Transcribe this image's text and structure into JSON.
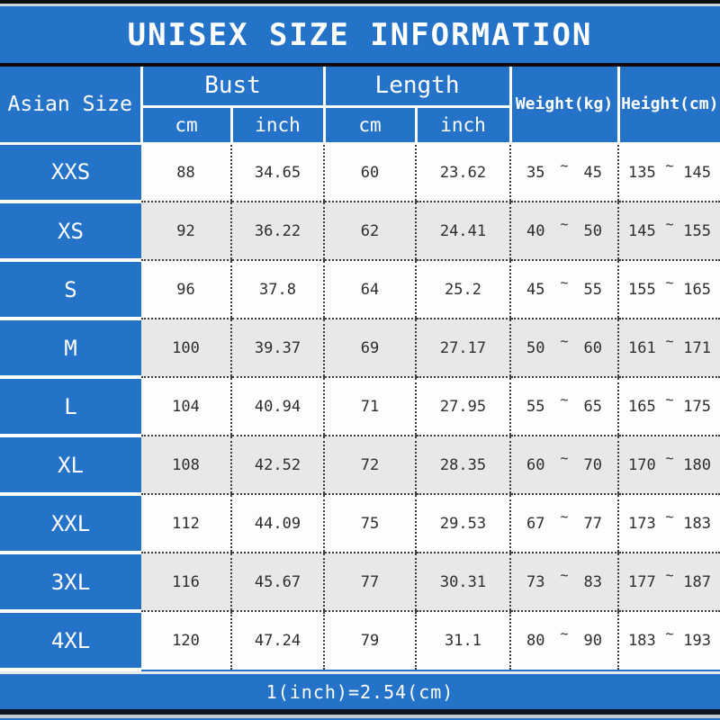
{
  "title": "UNISEX SIZE INFORMATION",
  "header": {
    "size": "Asian Size",
    "bust": "Bust",
    "length": "Length",
    "weight": "Weight(kg)",
    "height": "Height(cm)",
    "cm": "cm",
    "inch": "inch"
  },
  "tilde": "~",
  "footer_note": "1(inch)=2.54(cm)",
  "colors": {
    "blue": "#2473c8",
    "row_alt": "#e8e8e6",
    "row_plain": "#fdfdfd",
    "top_bar": "#0d0d0d",
    "text_dark": "#2d2d2d"
  },
  "chart_data": {
    "type": "table",
    "title": "UNISEX SIZE INFORMATION",
    "column_groups": [
      "Asian Size",
      "Bust",
      "Length",
      "Weight(kg)",
      "Height(cm)"
    ],
    "columns": [
      "Asian Size",
      "Bust cm",
      "Bust inch",
      "Length cm",
      "Length inch",
      "Weight(kg)",
      "Height(cm)"
    ],
    "rows": [
      {
        "size": "XXS",
        "bust_cm": "88",
        "bust_inch": "34.65",
        "length_cm": "60",
        "length_inch": "23.62",
        "weight_min": "35",
        "weight_max": "45",
        "height_min": "135",
        "height_max": "145"
      },
      {
        "size": "XS",
        "bust_cm": "92",
        "bust_inch": "36.22",
        "length_cm": "62",
        "length_inch": "24.41",
        "weight_min": "40",
        "weight_max": "50",
        "height_min": "145",
        "height_max": "155"
      },
      {
        "size": "S",
        "bust_cm": "96",
        "bust_inch": "37.8",
        "length_cm": "64",
        "length_inch": "25.2",
        "weight_min": "45",
        "weight_max": "55",
        "height_min": "155",
        "height_max": "165"
      },
      {
        "size": "M",
        "bust_cm": "100",
        "bust_inch": "39.37",
        "length_cm": "69",
        "length_inch": "27.17",
        "weight_min": "50",
        "weight_max": "60",
        "height_min": "161",
        "height_max": "171"
      },
      {
        "size": "L",
        "bust_cm": "104",
        "bust_inch": "40.94",
        "length_cm": "71",
        "length_inch": "27.95",
        "weight_min": "55",
        "weight_max": "65",
        "height_min": "165",
        "height_max": "175"
      },
      {
        "size": "XL",
        "bust_cm": "108",
        "bust_inch": "42.52",
        "length_cm": "72",
        "length_inch": "28.35",
        "weight_min": "60",
        "weight_max": "70",
        "height_min": "170",
        "height_max": "180"
      },
      {
        "size": "XXL",
        "bust_cm": "112",
        "bust_inch": "44.09",
        "length_cm": "75",
        "length_inch": "29.53",
        "weight_min": "67",
        "weight_max": "77",
        "height_min": "173",
        "height_max": "183"
      },
      {
        "size": "3XL",
        "bust_cm": "116",
        "bust_inch": "45.67",
        "length_cm": "77",
        "length_inch": "30.31",
        "weight_min": "73",
        "weight_max": "83",
        "height_min": "177",
        "height_max": "187"
      },
      {
        "size": "4XL",
        "bust_cm": "120",
        "bust_inch": "47.24",
        "length_cm": "79",
        "length_inch": "31.1",
        "weight_min": "80",
        "weight_max": "90",
        "height_min": "183",
        "height_max": "193"
      }
    ],
    "note": "1(inch)=2.54(cm)"
  }
}
